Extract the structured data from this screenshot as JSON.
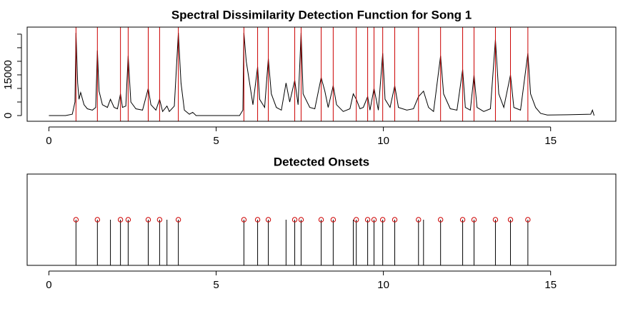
{
  "chart_data": [
    {
      "type": "line",
      "title": "Spectral Dissimilarity Detection Function for Song 1",
      "color": "#000000",
      "x": [
        0,
        0.5,
        0.7,
        0.78,
        0.81,
        0.86,
        0.9,
        0.95,
        1.05,
        1.15,
        1.3,
        1.4,
        1.45,
        1.5,
        1.6,
        1.75,
        1.84,
        1.95,
        2.05,
        2.14,
        2.2,
        2.3,
        2.37,
        2.45,
        2.6,
        2.8,
        2.97,
        3.05,
        3.2,
        3.31,
        3.4,
        3.53,
        3.6,
        3.75,
        3.87,
        3.95,
        4.05,
        4.2,
        4.3,
        4.4,
        5.7,
        5.8,
        5.83,
        5.9,
        6.0,
        6.1,
        6.24,
        6.3,
        6.45,
        6.56,
        6.65,
        6.8,
        6.95,
        7.09,
        7.2,
        7.35,
        7.45,
        7.54,
        7.6,
        7.8,
        7.95,
        8.14,
        8.25,
        8.35,
        8.5,
        8.6,
        8.8,
        9.0,
        9.1,
        9.19,
        9.3,
        9.4,
        9.53,
        9.6,
        9.72,
        9.85,
        9.98,
        10.05,
        10.2,
        10.34,
        10.45,
        10.7,
        10.9,
        11.05,
        11.2,
        11.35,
        11.5,
        11.71,
        11.8,
        12.0,
        12.2,
        12.37,
        12.45,
        12.6,
        12.71,
        12.8,
        13.0,
        13.2,
        13.35,
        13.45,
        13.6,
        13.8,
        13.9,
        14.1,
        14.32,
        14.4,
        14.55,
        14.7,
        14.9,
        15.5,
        16.2,
        16.25,
        16.3
      ],
      "values": [
        0,
        0,
        500,
        5000,
        30500,
        12000,
        6000,
        8500,
        4000,
        2500,
        2000,
        3000,
        24000,
        9000,
        4000,
        3000,
        6000,
        3000,
        2500,
        8000,
        3000,
        3500,
        22000,
        5000,
        2500,
        2000,
        10000,
        4000,
        2000,
        6000,
        1500,
        3500,
        1500,
        3500,
        30500,
        12000,
        2000,
        500,
        1200,
        0,
        0,
        2000,
        30500,
        20000,
        12000,
        4000,
        18000,
        6000,
        3000,
        21000,
        8000,
        3000,
        2000,
        12000,
        5000,
        13000,
        4000,
        30500,
        8000,
        3000,
        2500,
        14000,
        9000,
        3000,
        11000,
        4000,
        1500,
        2500,
        8000,
        6000,
        2500,
        3000,
        7000,
        2000,
        10000,
        2000,
        23000,
        6000,
        3000,
        11000,
        3000,
        2000,
        2500,
        7000,
        9000,
        3000,
        1500,
        22000,
        8000,
        2500,
        2000,
        17000,
        3000,
        2000,
        15000,
        3000,
        1500,
        2500,
        28000,
        8000,
        3000,
        15000,
        3000,
        2000,
        23000,
        8000,
        3000,
        800,
        200,
        300,
        500,
        2000,
        0
      ],
      "onset_lines": {
        "color": "#cc0000",
        "x": [
          0.81,
          1.45,
          2.14,
          2.37,
          2.97,
          3.31,
          3.87,
          5.83,
          6.24,
          6.56,
          7.35,
          7.54,
          8.14,
          8.5,
          9.19,
          9.53,
          9.72,
          9.98,
          10.34,
          11.05,
          11.71,
          12.37,
          12.71,
          13.35,
          13.8,
          14.32
        ]
      },
      "xlim": [
        -0.65,
        16.95
      ],
      "ylim": [
        -2100,
        32600
      ],
      "xticks": [
        0,
        5,
        10,
        15
      ],
      "yticks": [
        0,
        15000
      ],
      "yminor_ticks": [
        5000,
        10000,
        20000,
        25000,
        30000
      ]
    },
    {
      "type": "stem",
      "title": "Detected Onsets",
      "color": "#000000",
      "x": [
        0.81,
        1.45,
        1.84,
        2.14,
        2.37,
        2.97,
        3.31,
        3.53,
        3.87,
        5.83,
        6.24,
        6.56,
        7.09,
        7.35,
        7.54,
        8.14,
        8.5,
        9.1,
        9.19,
        9.53,
        9.72,
        9.98,
        10.34,
        11.05,
        11.2,
        11.71,
        12.37,
        12.71,
        13.35,
        13.8,
        14.32
      ],
      "values": [
        1,
        1,
        1,
        1,
        1,
        1,
        1,
        1,
        1,
        1,
        1,
        1,
        1,
        1,
        1,
        1,
        1,
        1,
        1,
        1,
        1,
        1,
        1,
        1,
        1,
        1,
        1,
        1,
        1,
        1,
        1
      ],
      "markers": {
        "color": "#cc0000",
        "x": [
          0.81,
          1.45,
          2.14,
          2.37,
          2.97,
          3.31,
          3.87,
          5.83,
          6.24,
          6.56,
          7.35,
          7.54,
          8.14,
          8.5,
          9.19,
          9.53,
          9.72,
          9.98,
          10.34,
          11.05,
          11.71,
          12.37,
          12.71,
          13.35,
          13.8,
          14.32
        ],
        "values": [
          1,
          1,
          1,
          1,
          1,
          1,
          1,
          1,
          1,
          1,
          1,
          1,
          1,
          1,
          1,
          1,
          1,
          1,
          1,
          1,
          1,
          1,
          1,
          1,
          1,
          1
        ]
      },
      "xlim": [
        -0.65,
        16.95
      ],
      "ylim": [
        0,
        2
      ],
      "xticks": [
        0,
        5,
        10,
        15
      ]
    }
  ]
}
